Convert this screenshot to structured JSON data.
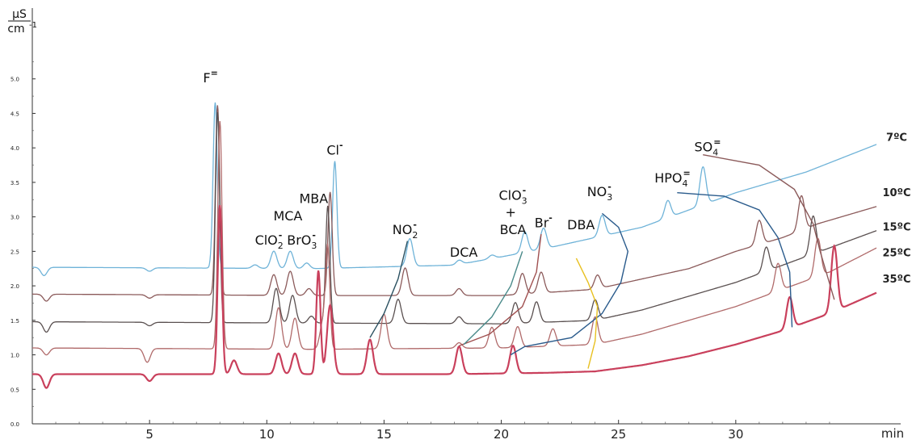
{
  "chart_data": {
    "type": "line",
    "title": "",
    "ylabel_num": "µS",
    "ylabel_den": "cm",
    "ylabel_exp": "-1",
    "xlabel": "min",
    "xlim": [
      0,
      36
    ],
    "ylim": [
      0.0,
      5.5
    ],
    "y_ticks": [
      0.0,
      0.5,
      1.0,
      1.5,
      2.0,
      2.5,
      3.0,
      3.5,
      4.0,
      4.5,
      5.0
    ],
    "y_tick_labels": [
      "0.0",
      "0.5",
      "1.0",
      "1.5",
      "2.0",
      "2.5",
      "3.0",
      "3.5",
      "4.0",
      "4.5",
      "5.0"
    ],
    "x_ticks": [
      5,
      10,
      15,
      20,
      25,
      30
    ],
    "x_tick_labels": [
      "5",
      "10",
      "15",
      "20",
      "25",
      "30"
    ],
    "grid": false,
    "series": [
      {
        "name": "7ºC",
        "color": "#6fb3d8",
        "baseline": [
          [
            0,
            2.27
          ],
          [
            12,
            2.25
          ],
          [
            18,
            2.3
          ],
          [
            20,
            2.42
          ],
          [
            22,
            2.55
          ],
          [
            24,
            2.7
          ],
          [
            26,
            2.85
          ],
          [
            28,
            3.1
          ],
          [
            30,
            3.35
          ],
          [
            33,
            3.65
          ],
          [
            36,
            4.05
          ]
        ],
        "peaks": [
          [
            0.5,
            -0.12
          ],
          [
            5,
            -0.05
          ],
          [
            7.8,
            2.4
          ],
          [
            9.5,
            0.05
          ],
          [
            10.3,
            0.25
          ],
          [
            11,
            0.25
          ],
          [
            11.7,
            0.08
          ],
          [
            12.9,
            1.55
          ],
          [
            16.1,
            0.4
          ],
          [
            18.2,
            0.06
          ],
          [
            19.6,
            0.05
          ],
          [
            21,
            0.3
          ],
          [
            21.8,
            0.3
          ],
          [
            24.3,
            0.3
          ],
          [
            27.1,
            0.25
          ],
          [
            28.6,
            0.55
          ]
        ]
      },
      {
        "name": "10ºC",
        "color": "#8b5a5a",
        "baseline": [
          [
            0,
            1.88
          ],
          [
            12,
            1.86
          ],
          [
            20,
            1.86
          ],
          [
            24,
            1.95
          ],
          [
            26,
            2.1
          ],
          [
            28,
            2.25
          ],
          [
            30,
            2.5
          ],
          [
            32,
            2.7
          ],
          [
            33.5,
            2.9
          ],
          [
            36,
            3.15
          ]
        ],
        "peaks": [
          [
            0.6,
            -0.1
          ],
          [
            5,
            -0.05
          ],
          [
            7.9,
            2.75
          ],
          [
            10.3,
            0.3
          ],
          [
            11,
            0.35
          ],
          [
            11.8,
            0.1
          ],
          [
            12.7,
            1.5
          ],
          [
            15.9,
            0.4
          ],
          [
            18.2,
            0.1
          ],
          [
            20.9,
            0.3
          ],
          [
            21.7,
            0.3
          ],
          [
            24.1,
            0.2
          ],
          [
            31,
            0.35
          ],
          [
            32.8,
            0.5
          ]
        ]
      },
      {
        "name": "15ºC",
        "color": "#5a5050",
        "baseline": [
          [
            0,
            1.48
          ],
          [
            12,
            1.46
          ],
          [
            20,
            1.45
          ],
          [
            24,
            1.5
          ],
          [
            26,
            1.65
          ],
          [
            28,
            1.85
          ],
          [
            30,
            2.05
          ],
          [
            32,
            2.3
          ],
          [
            34,
            2.55
          ],
          [
            36,
            2.8
          ]
        ],
        "peaks": [
          [
            0.6,
            -0.15
          ],
          [
            5,
            -0.05
          ],
          [
            7.9,
            3.05
          ],
          [
            10.4,
            0.5
          ],
          [
            11.1,
            0.4
          ],
          [
            11.9,
            0.1
          ],
          [
            12.6,
            1.7
          ],
          [
            15.6,
            0.35
          ],
          [
            18.2,
            0.1
          ],
          [
            20.6,
            0.3
          ],
          [
            21.5,
            0.3
          ],
          [
            24,
            0.3
          ],
          [
            31.3,
            0.35
          ],
          [
            33.3,
            0.55
          ]
        ]
      },
      {
        "name": "25ºC",
        "color": "#b06a6a",
        "baseline": [
          [
            0,
            1.1
          ],
          [
            12,
            1.08
          ],
          [
            20,
            1.1
          ],
          [
            24,
            1.15
          ],
          [
            26,
            1.3
          ],
          [
            28,
            1.5
          ],
          [
            30,
            1.7
          ],
          [
            32,
            1.95
          ],
          [
            34,
            2.2
          ],
          [
            36,
            2.55
          ]
        ],
        "peaks": [
          [
            0.6,
            -0.1
          ],
          [
            4.9,
            -0.2
          ],
          [
            8.0,
            3.3
          ],
          [
            10.5,
            0.6
          ],
          [
            11.2,
            0.45
          ],
          [
            12.4,
            0.4
          ],
          [
            12.6,
            1.4
          ],
          [
            15.0,
            0.5
          ],
          [
            18.2,
            0.08
          ],
          [
            19.6,
            0.3
          ],
          [
            20.7,
            0.3
          ],
          [
            22.2,
            0.25
          ],
          [
            24,
            0.4
          ],
          [
            31.8,
            0.4
          ],
          [
            33.5,
            0.55
          ]
        ]
      },
      {
        "name": "35ºC",
        "color": "#c9405c",
        "baseline": [
          [
            0,
            0.72
          ],
          [
            12,
            0.72
          ],
          [
            18,
            0.72
          ],
          [
            22,
            0.74
          ],
          [
            24,
            0.76
          ],
          [
            26,
            0.85
          ],
          [
            28,
            0.98
          ],
          [
            30,
            1.15
          ],
          [
            32,
            1.35
          ],
          [
            34,
            1.6
          ],
          [
            36,
            1.9
          ]
        ],
        "peaks": [
          [
            0.6,
            -0.2
          ],
          [
            5,
            -0.1
          ],
          [
            8.0,
            2.45
          ],
          [
            8.6,
            0.2
          ],
          [
            10.5,
            0.3
          ],
          [
            11.2,
            0.3
          ],
          [
            12.2,
            1.5
          ],
          [
            12.7,
            1.0
          ],
          [
            14.4,
            0.5
          ],
          [
            18.2,
            0.4
          ],
          [
            20.5,
            0.4
          ],
          [
            32.3,
            0.45
          ],
          [
            34.2,
            0.95
          ]
        ]
      }
    ],
    "annotations": [
      {
        "text": "F",
        "sup": "=",
        "x": 7.6,
        "y": 4.95
      },
      {
        "text": "Cl",
        "sup": "-",
        "x": 12.9,
        "y": 3.9
      },
      {
        "text": "MBA",
        "x": 12.0,
        "y": 3.2
      },
      {
        "text": "MCA",
        "x": 10.9,
        "y": 2.95
      },
      {
        "text": "ClO",
        "sub": "2",
        "sup": "-",
        "x": 10.1,
        "y": 2.6
      },
      {
        "text": "BrO",
        "sub": "3",
        "sup": "-",
        "x": 11.5,
        "y": 2.6
      },
      {
        "text": "NO",
        "sub": "2",
        "sup": "-",
        "x": 15.9,
        "y": 2.75
      },
      {
        "text": "DCA",
        "x": 18.4,
        "y": 2.42
      },
      {
        "text": "ClO",
        "sub": "3",
        "sup": "-",
        "x": 20.5,
        "y": 3.25
      },
      {
        "text": "+",
        "x": 20.4,
        "y": 3.0
      },
      {
        "text": "BCA",
        "x": 20.5,
        "y": 2.75
      },
      {
        "text": "Br",
        "sup": "-",
        "x": 21.8,
        "y": 2.85
      },
      {
        "text": "DBA",
        "x": 23.4,
        "y": 2.82
      },
      {
        "text": "NO",
        "sub": "3",
        "sup": "-",
        "x": 24.2,
        "y": 3.3
      },
      {
        "text": "HPO",
        "sub": "4",
        "sup": "=",
        "x": 27.3,
        "y": 3.5
      },
      {
        "text": "SO",
        "sub": "4",
        "sup": "=",
        "x": 28.8,
        "y": 3.95
      }
    ],
    "series_labels": [
      {
        "text": "7ºC",
        "series": 0
      },
      {
        "text": "10ºC",
        "series": 1
      },
      {
        "text": "15ºC",
        "series": 2
      },
      {
        "text": "25ºC",
        "series": 3
      },
      {
        "text": "35ºC",
        "series": 4
      }
    ],
    "connector_lines": [
      {
        "color": "#8b5a5a",
        "points": [
          [
            28.6,
            3.9
          ],
          [
            31,
            3.75
          ],
          [
            32.5,
            3.4
          ],
          [
            33.3,
            2.9
          ],
          [
            33.6,
            2.5
          ],
          [
            34.2,
            1.8
          ]
        ]
      },
      {
        "color": "#2a5b8c",
        "points": [
          [
            27.5,
            3.35
          ],
          [
            29.5,
            3.3
          ],
          [
            31,
            3.1
          ],
          [
            31.8,
            2.7
          ],
          [
            32.3,
            2.2
          ],
          [
            32.4,
            1.4
          ]
        ]
      },
      {
        "color": "#2a5b8c",
        "points": [
          [
            24.3,
            3.05
          ],
          [
            25,
            2.85
          ],
          [
            25.4,
            2.5
          ],
          [
            25.1,
            2.05
          ],
          [
            24.3,
            1.6
          ],
          [
            23.0,
            1.25
          ],
          [
            21.0,
            1.12
          ],
          [
            20.4,
            1.0
          ]
        ]
      },
      {
        "color": "#e8c020",
        "points": [
          [
            23.2,
            2.4
          ],
          [
            23.7,
            2.05
          ],
          [
            24.1,
            1.7
          ],
          [
            24.0,
            1.2
          ],
          [
            23.7,
            0.8
          ]
        ]
      },
      {
        "color": "#a05050",
        "points": [
          [
            21.7,
            2.75
          ],
          [
            21.5,
            2.2
          ],
          [
            20.9,
            1.7
          ],
          [
            19.5,
            1.3
          ],
          [
            18.2,
            1.13
          ]
        ]
      },
      {
        "color": "#4a8a8a",
        "points": [
          [
            20.9,
            2.5
          ],
          [
            20.4,
            2.0
          ],
          [
            19.6,
            1.55
          ],
          [
            18.4,
            1.15
          ]
        ]
      },
      {
        "color": "#2a5060",
        "points": [
          [
            16.0,
            2.65
          ],
          [
            15.6,
            2.1
          ],
          [
            15.0,
            1.6
          ],
          [
            14.4,
            1.25
          ]
        ]
      }
    ]
  }
}
